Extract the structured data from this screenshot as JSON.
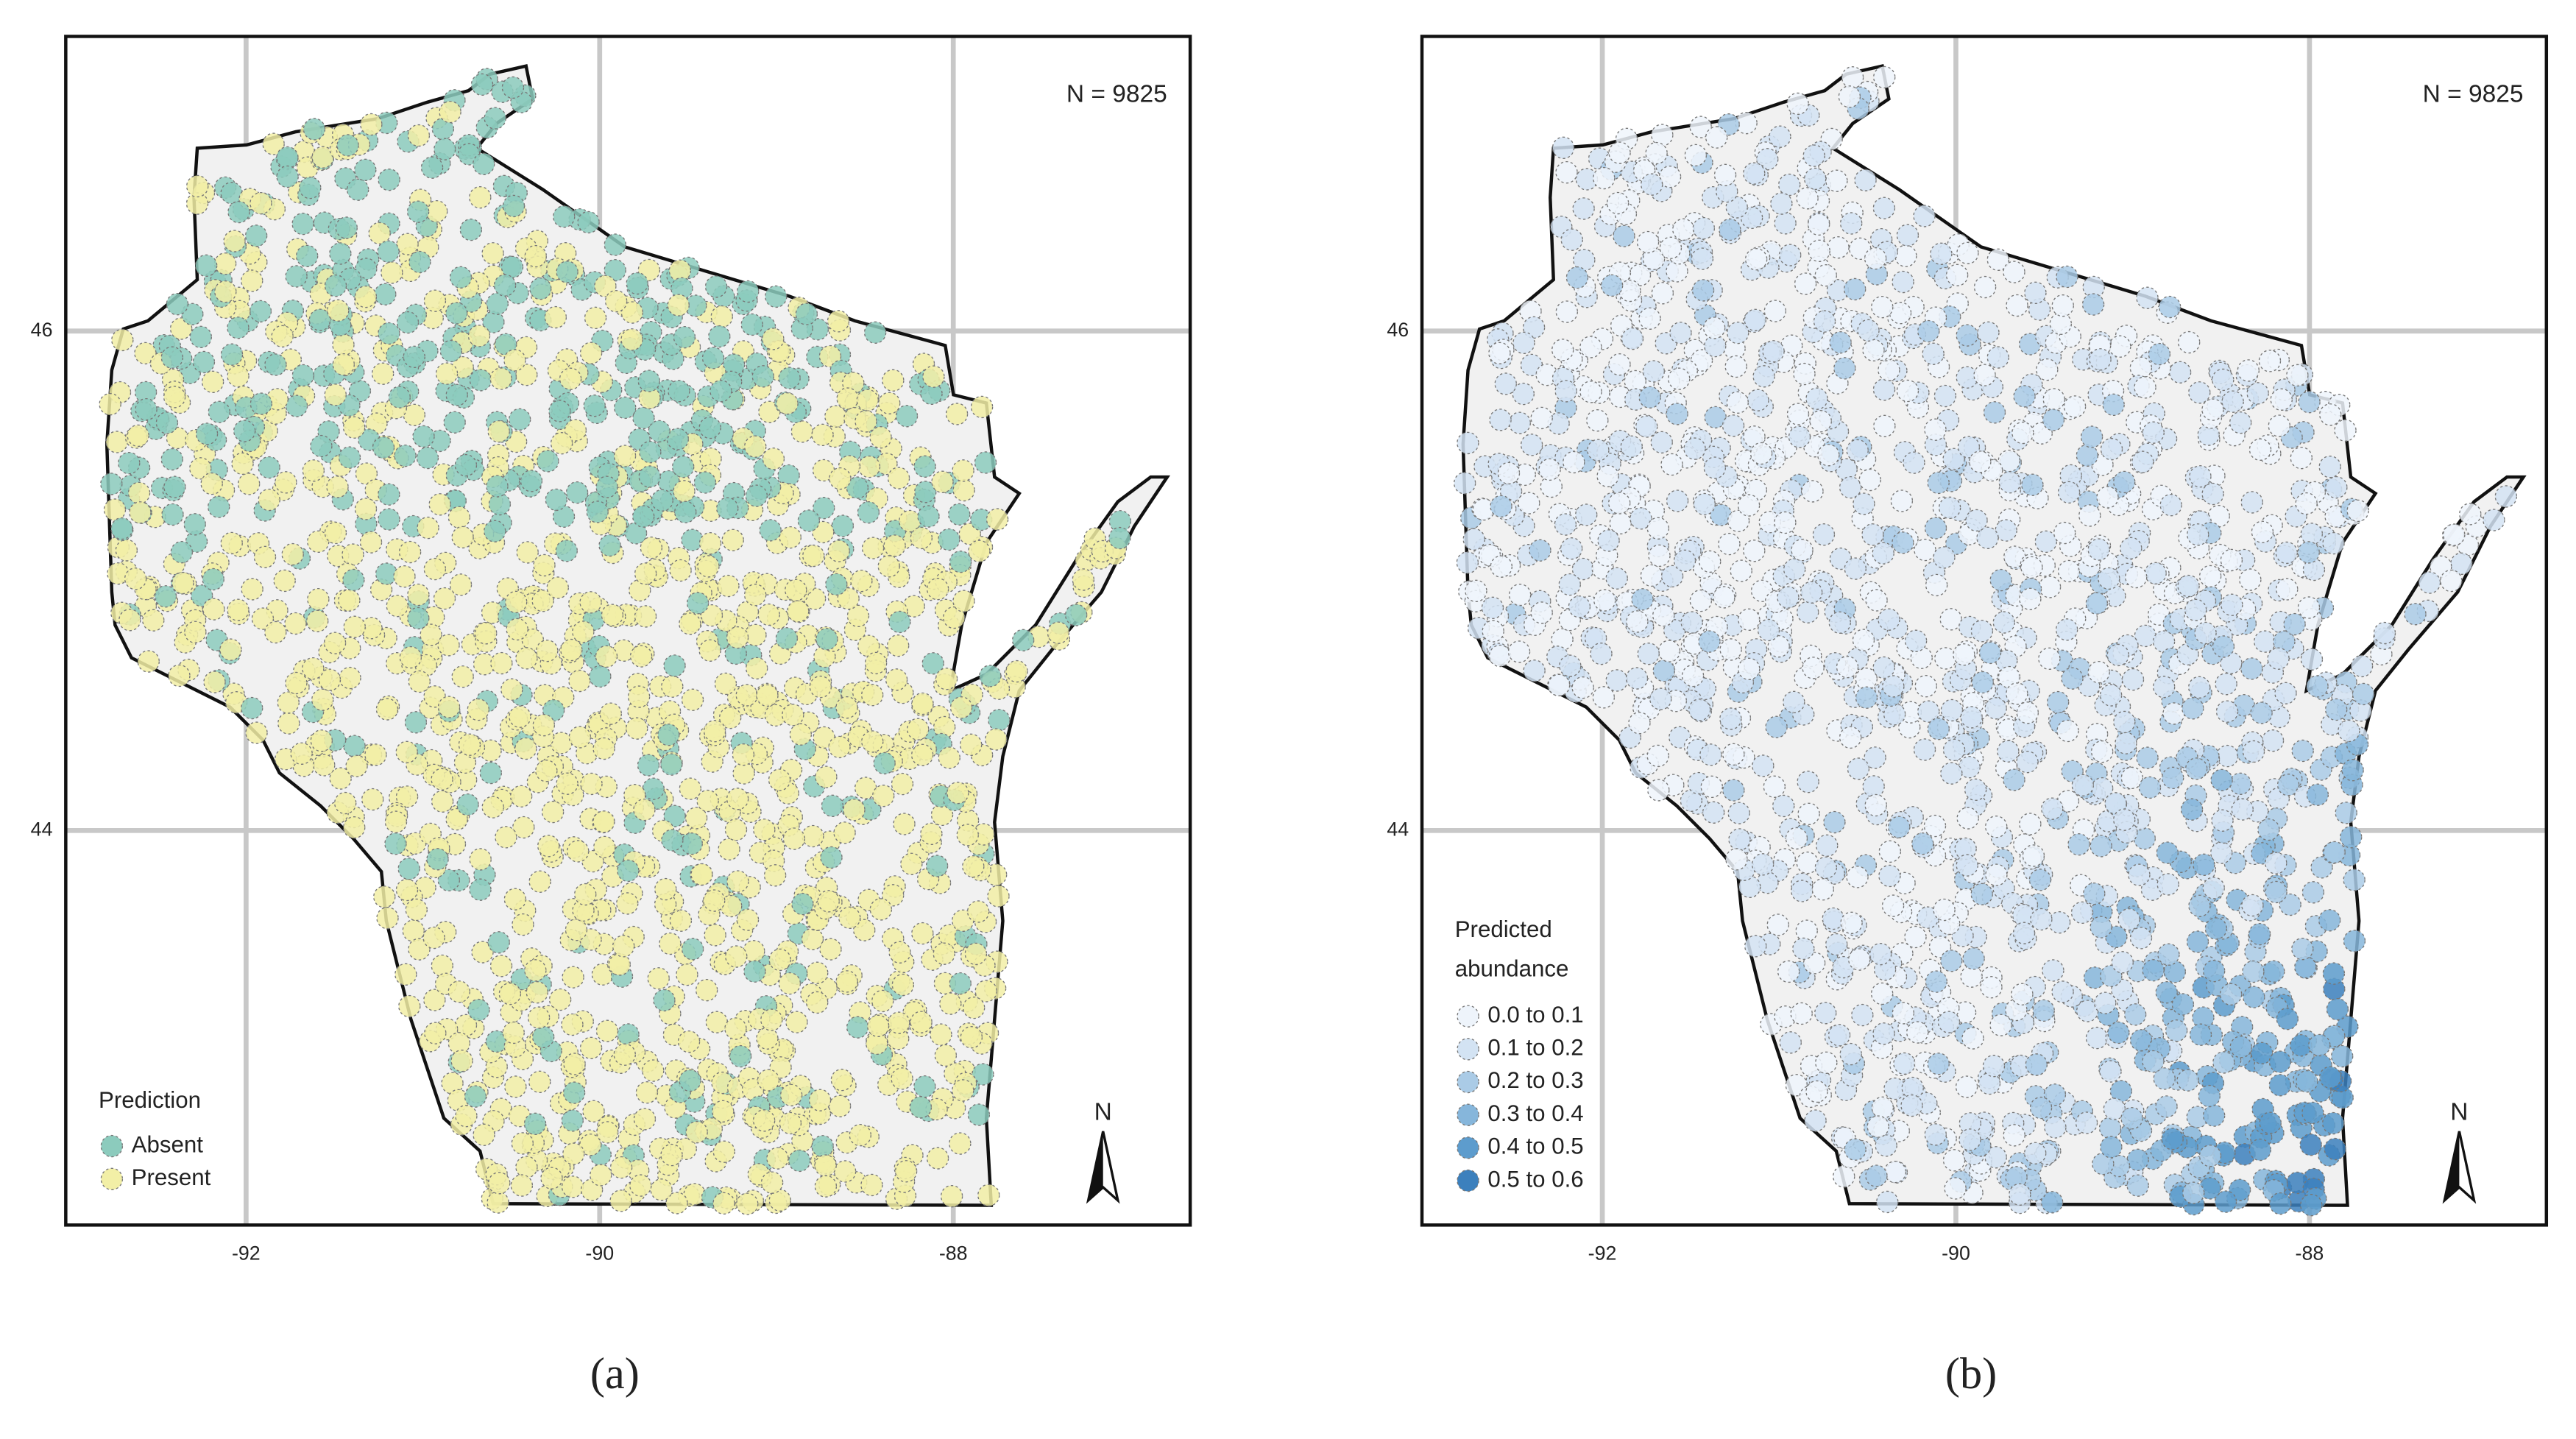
{
  "figure": {
    "panels": [
      {
        "label": "(a)",
        "sample_size": "N = 9825",
        "xlim": [
          -93.02,
          -86.66
        ],
        "ylim": [
          42.42,
          47.18
        ],
        "xticks": [
          -92,
          -90,
          -88
        ],
        "yticks": [
          44,
          46
        ],
        "north_label": "N",
        "legend": {
          "title": [
            "Prediction"
          ],
          "items": [
            {
              "label": "Absent",
              "color": "#8ccbbd"
            },
            {
              "label": "Present",
              "color": "#f2efa6"
            }
          ]
        }
      },
      {
        "label": "(b)",
        "sample_size": "N = 9825",
        "xlim": [
          -93.02,
          -86.66
        ],
        "ylim": [
          42.42,
          47.18
        ],
        "xticks": [
          -92,
          -90,
          -88
        ],
        "yticks": [
          44,
          46
        ],
        "north_label": "N",
        "legend": {
          "title": [
            "Predicted",
            "abundance"
          ],
          "items": [
            {
              "label": "0.0 to 0.1",
              "color": "#eef4fb"
            },
            {
              "label": "0.1 to 0.2",
              "color": "#d3e3f3"
            },
            {
              "label": "0.2 to 0.3",
              "color": "#aacbe6"
            },
            {
              "label": "0.3 to 0.4",
              "color": "#86b6db"
            },
            {
              "label": "0.4 to 0.5",
              "color": "#5d9ccd"
            },
            {
              "label": "0.5 to 0.6",
              "color": "#3c80bd"
            }
          ]
        }
      }
    ]
  }
}
